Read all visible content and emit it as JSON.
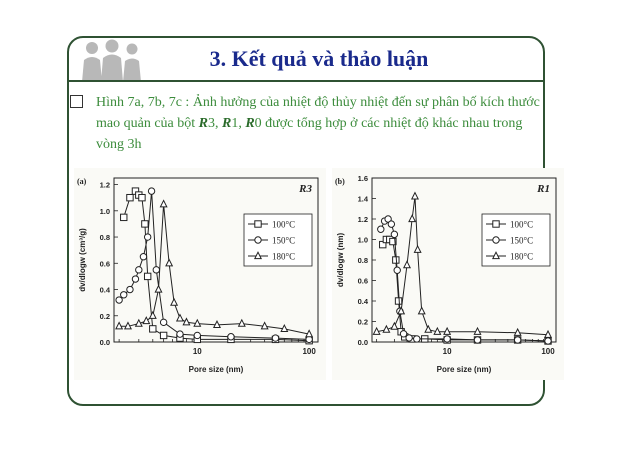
{
  "slide": {
    "title": "3. Kết quả và thảo luận",
    "caption_prefix": "Hình 7a, 7b, 7c : Ảnh hưởng của nhiệt độ thủy nhiệt đến sự phân bố kích thước mao quản của bột ",
    "caption_r3": "R",
    "caption_mid1": "3, ",
    "caption_r1": "R",
    "caption_mid2": "1, ",
    "caption_r0": "R",
    "caption_suffix": "0 được tổng hợp ở các nhiệt độ khác nhau trong vòng 3h"
  },
  "chart_data": [
    {
      "type": "line",
      "panel_label": "(a)",
      "sample_label": "R3",
      "xlabel": "Pore size (nm)",
      "ylabel": "dv/dlogw (cm³/g)",
      "x_scale": "log",
      "xlim": [
        1.8,
        120
      ],
      "ylim": [
        0,
        1.25
      ],
      "x_ticks": [
        "10",
        "100"
      ],
      "y_ticks": [
        "0.0",
        "0.2",
        "0.4",
        "0.6",
        "0.8",
        "1.0",
        "1.2"
      ],
      "legend_position": "right",
      "series": [
        {
          "name": "100°C",
          "marker": "square",
          "x": [
            2.2,
            2.5,
            2.8,
            3.0,
            3.2,
            3.4,
            3.6,
            4.0,
            5,
            7,
            10,
            20,
            50,
            100
          ],
          "y": [
            0.95,
            1.1,
            1.15,
            1.12,
            1.1,
            0.9,
            0.5,
            0.1,
            0.05,
            0.03,
            0.02,
            0.02,
            0.02,
            0.01
          ]
        },
        {
          "name": "150°C",
          "marker": "circle",
          "x": [
            2.0,
            2.2,
            2.5,
            2.8,
            3.0,
            3.3,
            3.6,
            3.9,
            4.3,
            5,
            7,
            10,
            20,
            50,
            100
          ],
          "y": [
            0.32,
            0.36,
            0.4,
            0.48,
            0.55,
            0.65,
            0.8,
            1.15,
            0.55,
            0.15,
            0.06,
            0.05,
            0.04,
            0.03,
            0.02
          ]
        },
        {
          "name": "180°C",
          "marker": "triangle",
          "x": [
            2.0,
            2.4,
            3.0,
            3.5,
            4.0,
            4.5,
            5.0,
            5.6,
            6.2,
            7,
            8,
            10,
            15,
            25,
            40,
            60,
            100
          ],
          "y": [
            0.12,
            0.12,
            0.14,
            0.16,
            0.2,
            0.4,
            1.05,
            0.6,
            0.3,
            0.18,
            0.15,
            0.14,
            0.13,
            0.14,
            0.12,
            0.1,
            0.06
          ]
        }
      ]
    },
    {
      "type": "line",
      "panel_label": "(b)",
      "sample_label": "R1",
      "xlabel": "Pore size (nm)",
      "ylabel": "dv/dlogw (nm)",
      "x_scale": "log",
      "xlim": [
        1.8,
        120
      ],
      "ylim": [
        0,
        1.6
      ],
      "x_ticks": [
        "10",
        "100"
      ],
      "y_ticks": [
        "0.0",
        "0.2",
        "0.4",
        "0.6",
        "0.8",
        "1.0",
        "1.2",
        "1.4",
        "1.6"
      ],
      "legend_position": "right",
      "series": [
        {
          "name": "100°C",
          "marker": "square",
          "x": [
            2.3,
            2.5,
            2.7,
            2.9,
            3.1,
            3.3,
            3.5,
            3.8,
            4.5,
            6,
            10,
            20,
            50,
            100
          ],
          "y": [
            0.95,
            1.0,
            1.0,
            0.98,
            0.8,
            0.4,
            0.1,
            0.05,
            0.03,
            0.03,
            0.02,
            0.02,
            0.02,
            0.01
          ]
        },
        {
          "name": "150°C",
          "marker": "circle",
          "x": [
            2.2,
            2.4,
            2.6,
            2.8,
            3.0,
            3.2,
            3.4,
            3.7,
            4.2,
            5,
            10,
            20,
            50,
            100
          ],
          "y": [
            1.1,
            1.18,
            1.2,
            1.15,
            1.05,
            0.7,
            0.3,
            0.08,
            0.04,
            0.03,
            0.03,
            0.02,
            0.02,
            0.01
          ]
        },
        {
          "name": "180°C",
          "marker": "triangle",
          "x": [
            2.0,
            2.5,
            3.0,
            3.5,
            4.0,
            4.5,
            4.8,
            5.1,
            5.6,
            6.5,
            8,
            10,
            20,
            50,
            100
          ],
          "y": [
            0.1,
            0.12,
            0.15,
            0.3,
            0.75,
            1.2,
            1.42,
            0.9,
            0.3,
            0.12,
            0.1,
            0.1,
            0.1,
            0.09,
            0.07
          ]
        }
      ]
    }
  ]
}
